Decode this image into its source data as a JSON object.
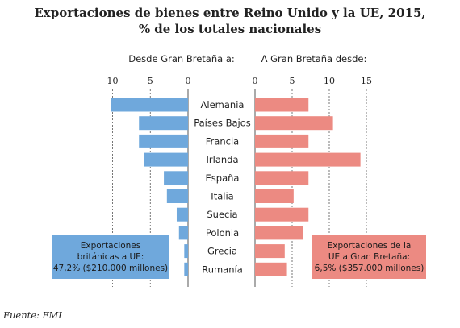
{
  "title_line1": "Exportaciones de bienes entre Reino Unido y la UE, 2015,",
  "title_line2": "% de los totales nacionales",
  "source": "Fuente: FMI",
  "colors": {
    "left_bar": "#6fa8dc",
    "right_bar": "#ec8a82",
    "grid": "#555555"
  },
  "callout_left": {
    "lines": [
      "Exportaciones",
      "británicas a UE:",
      "47,2% ($210.000 millones)"
    ]
  },
  "callout_right": {
    "lines": [
      "Exportaciones de la",
      "UE a Gran Bretaña:",
      "6,5% ($357.000 millones)"
    ]
  },
  "chart_data": [
    {
      "type": "bar",
      "orientation": "horizontal",
      "direction": "leftward",
      "title": "Desde Gran Bretaña a:",
      "categories": [
        "Alemania",
        "Países Bajos",
        "Francia",
        "Irlanda",
        "España",
        "Italia",
        "Suecia",
        "Polonia",
        "Grecia",
        "Rumanía"
      ],
      "values": [
        10.2,
        6.5,
        6.5,
        5.8,
        3.2,
        2.8,
        1.5,
        1.2,
        0.5,
        0.5
      ],
      "xlim": [
        0,
        10
      ],
      "xticks": [
        10,
        5,
        0
      ],
      "grid": true
    },
    {
      "type": "bar",
      "orientation": "horizontal",
      "direction": "rightward",
      "title": "A Gran Bretaña desde:",
      "categories": [
        "Alemania",
        "Países Bajos",
        "Francia",
        "Irlanda",
        "España",
        "Italia",
        "Suecia",
        "Polonia",
        "Grecia",
        "Rumanía"
      ],
      "values": [
        7.2,
        10.5,
        7.2,
        14.2,
        7.2,
        5.2,
        7.2,
        6.5,
        4.0,
        4.3
      ],
      "xlim": [
        0,
        15
      ],
      "xticks": [
        0,
        5,
        10,
        15
      ],
      "grid": true
    }
  ]
}
